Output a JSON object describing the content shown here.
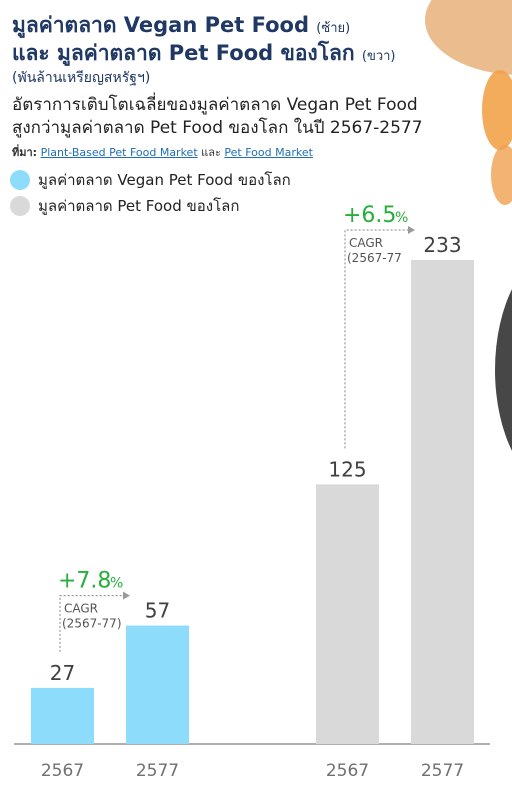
{
  "header": {
    "title_line1": "มูลค่าตลาด Vegan Pet Food",
    "title_line1_side": "(ซ้าย)",
    "title_line2": "และ มูลค่าตลาด Pet Food ของโลก",
    "title_line2_side": "(ขวา)",
    "unit": "(พันล้านเหรียญสหรัฐฯ)",
    "subtitle_line1": "อัตราการเติบโตเฉลี่ยของมูลค่าตลาด Vegan Pet Food",
    "subtitle_line2": "สูงกว่ามูลค่าตลาด Pet Food ของโลก ในปี 2567-2577",
    "source_label": "ที่มา:",
    "source_link1": "Plant-Based Pet Food Market",
    "source_and": "และ",
    "source_link2": "Pet Food Market"
  },
  "colors": {
    "vegan": "#8ddcfb",
    "petfood": "#d9d9d9",
    "growth": "#27ae3c",
    "title": "#1f3864"
  },
  "chart_data": {
    "type": "bar",
    "ylim": [
      0,
      250
    ],
    "legend": [
      {
        "name": "มูลค่าตลาด Vegan Pet Food ของโลก",
        "color": "#8ddcfb"
      },
      {
        "name": "มูลค่าตลาด Pet Food ของโลก",
        "color": "#d9d9d9"
      }
    ],
    "groups": [
      {
        "series": "มูลค่าตลาด Vegan Pet Food ของโลก",
        "color": "#8ddcfb",
        "categories": [
          "2567",
          "2577"
        ],
        "values": [
          27,
          57
        ],
        "cagr_value": "+7.8",
        "cagr_unit": "%",
        "cagr_label": "CAGR",
        "cagr_period": "(2567-77)"
      },
      {
        "series": "มูลค่าตลาด Pet Food ของโลก",
        "color": "#d9d9d9",
        "categories": [
          "2567",
          "2577"
        ],
        "values": [
          125,
          233
        ],
        "cagr_value": "+6.5",
        "cagr_unit": "%",
        "cagr_label": "CAGR",
        "cagr_period": "(2567-77"
      }
    ]
  }
}
